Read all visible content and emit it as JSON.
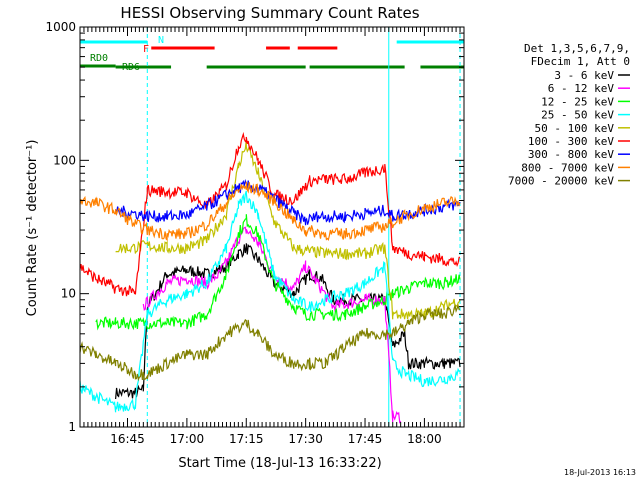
{
  "chart_data": {
    "type": "line",
    "title": "HESSI Observing Summary Count Rates",
    "xlabel": "Start Time (18-Jul-13 16:33:22)",
    "ylabel": "Count Rate (s⁻¹ detector⁻¹)",
    "y_scale": "log",
    "ylim": [
      1,
      1000
    ],
    "xlim": [
      "16:33",
      "18:10"
    ],
    "x_tick_labels": [
      "16:45",
      "17:00",
      "17:15",
      "17:30",
      "17:45",
      "18:00"
    ],
    "y_tick_labels": [
      "1",
      "10",
      "100",
      "1000"
    ],
    "legend_header": [
      "Det 1,3,5,6,7,9,",
      "FDecim 1, Att 0"
    ],
    "legend_position": "right",
    "footer_timestamp": "18-Jul-2013 16:13",
    "flags": [
      {
        "label": "N",
        "color": "#00ffff",
        "segments": [
          [
            "16:33",
            "16:50"
          ],
          [
            "17:53",
            "18:10"
          ]
        ]
      },
      {
        "label": "F",
        "color": "#ff0000",
        "segments": [
          [
            "16:51",
            "17:07"
          ],
          [
            "17:20",
            "17:26"
          ],
          [
            "17:28",
            "17:38"
          ]
        ]
      },
      {
        "label": "RD0",
        "color": "#008000",
        "segments": [
          [
            "16:33",
            "16:42"
          ]
        ]
      },
      {
        "label": "RD6",
        "color": "#008000",
        "segments": [
          [
            "16:42",
            "16:56"
          ],
          [
            "17:05",
            "17:30"
          ],
          [
            "17:31",
            "17:55"
          ],
          [
            "17:59",
            "18:10"
          ]
        ]
      }
    ],
    "boundaries": [
      {
        "time": "16:50",
        "color": "#00ffff",
        "style": "dashed"
      },
      {
        "time": "17:51",
        "color": "#00ffff",
        "style": "solid"
      },
      {
        "time": "18:09",
        "color": "#00ffff",
        "style": "dashed"
      }
    ],
    "series": [
      {
        "name": "3 - 6 keV",
        "color": "#000000",
        "points": [
          [
            "16:42",
            1.8
          ],
          [
            "16:47",
            1.8
          ],
          [
            "16:49",
            1.9
          ],
          [
            "16:50",
            8
          ],
          [
            "16:55",
            14
          ],
          [
            "17:00",
            15
          ],
          [
            "17:05",
            14
          ],
          [
            "17:08",
            15
          ],
          [
            "17:10",
            16
          ],
          [
            "17:13",
            20
          ],
          [
            "17:15",
            22
          ],
          [
            "17:18",
            18
          ],
          [
            "17:22",
            12
          ],
          [
            "17:27",
            10
          ],
          [
            "17:31",
            14
          ],
          [
            "17:34",
            13
          ],
          [
            "17:37",
            9
          ],
          [
            "17:45",
            9
          ],
          [
            "17:50",
            9
          ],
          [
            "17:52",
            4
          ],
          [
            "17:55",
            5
          ],
          [
            "17:56",
            3
          ],
          [
            "18:00",
            3
          ],
          [
            "18:05",
            3
          ],
          [
            "18:09",
            3
          ]
        ]
      },
      {
        "name": "6 - 12 keV",
        "color": "#ff00ff",
        "points": [
          [
            "16:49",
            8
          ],
          [
            "16:55",
            12
          ],
          [
            "17:00",
            13
          ],
          [
            "17:05",
            12
          ],
          [
            "17:08",
            14
          ],
          [
            "17:10",
            17
          ],
          [
            "17:13",
            26
          ],
          [
            "17:15",
            30
          ],
          [
            "17:18",
            24
          ],
          [
            "17:22",
            14
          ],
          [
            "17:27",
            11
          ],
          [
            "17:30",
            16
          ],
          [
            "17:33",
            12
          ],
          [
            "17:37",
            8
          ],
          [
            "17:45",
            9
          ],
          [
            "17:50",
            9
          ],
          [
            "17:52",
            1.2
          ],
          [
            "17:54",
            1.2
          ]
        ]
      },
      {
        "name": "12 - 25 keV",
        "color": "#00ff00",
        "points": [
          [
            "16:37",
            6
          ],
          [
            "16:42",
            6
          ],
          [
            "16:47",
            6
          ],
          [
            "16:50",
            6
          ],
          [
            "16:55",
            6
          ],
          [
            "17:00",
            6
          ],
          [
            "17:05",
            7
          ],
          [
            "17:10",
            14
          ],
          [
            "17:13",
            28
          ],
          [
            "17:15",
            36
          ],
          [
            "17:18",
            28
          ],
          [
            "17:22",
            12
          ],
          [
            "17:27",
            8
          ],
          [
            "17:30",
            7
          ],
          [
            "17:35",
            7
          ],
          [
            "17:40",
            7
          ],
          [
            "17:45",
            8
          ],
          [
            "17:50",
            9
          ],
          [
            "17:52",
            10
          ],
          [
            "17:56",
            11
          ],
          [
            "18:00",
            12
          ],
          [
            "18:05",
            12
          ],
          [
            "18:09",
            13
          ]
        ]
      },
      {
        "name": "25 - 50 keV",
        "color": "#00ffff",
        "points": [
          [
            "16:33",
            2
          ],
          [
            "16:37",
            1.7
          ],
          [
            "16:42",
            1.4
          ],
          [
            "16:47",
            1.5
          ],
          [
            "16:50",
            7
          ],
          [
            "16:55",
            9
          ],
          [
            "17:00",
            10
          ],
          [
            "17:05",
            12
          ],
          [
            "17:10",
            22
          ],
          [
            "17:13",
            45
          ],
          [
            "17:15",
            55
          ],
          [
            "17:18",
            40
          ],
          [
            "17:22",
            14
          ],
          [
            "17:27",
            9
          ],
          [
            "17:31",
            8
          ],
          [
            "17:35",
            9
          ],
          [
            "17:40",
            10
          ],
          [
            "17:45",
            12
          ],
          [
            "17:50",
            16
          ],
          [
            "17:52",
            3
          ],
          [
            "17:55",
            2.5
          ],
          [
            "18:00",
            2.2
          ],
          [
            "18:05",
            2.3
          ],
          [
            "18:09",
            2.5
          ]
        ]
      },
      {
        "name": "50 - 100 keV",
        "color": "#c0c000",
        "points": [
          [
            "16:42",
            22
          ],
          [
            "16:47",
            22
          ],
          [
            "16:50",
            23
          ],
          [
            "16:55",
            22
          ],
          [
            "17:00",
            22
          ],
          [
            "17:05",
            25
          ],
          [
            "17:10",
            40
          ],
          [
            "17:13",
            90
          ],
          [
            "17:15",
            130
          ],
          [
            "17:18",
            80
          ],
          [
            "17:22",
            35
          ],
          [
            "17:27",
            22
          ],
          [
            "17:30",
            21
          ],
          [
            "17:35",
            20
          ],
          [
            "17:40",
            20
          ],
          [
            "17:45",
            20
          ],
          [
            "17:50",
            22
          ],
          [
            "17:52",
            7
          ],
          [
            "18:00",
            7
          ],
          [
            "18:05",
            8
          ],
          [
            "18:09",
            9
          ]
        ]
      },
      {
        "name": "100 - 300 keV",
        "color": "#ff0000",
        "points": [
          [
            "16:33",
            16
          ],
          [
            "16:37",
            13
          ],
          [
            "16:42",
            11
          ],
          [
            "16:47",
            10
          ],
          [
            "16:50",
            60
          ],
          [
            "16:55",
            58
          ],
          [
            "17:00",
            57
          ],
          [
            "17:05",
            45
          ],
          [
            "17:10",
            65
          ],
          [
            "17:13",
            130
          ],
          [
            "17:15",
            150
          ],
          [
            "17:18",
            100
          ],
          [
            "17:22",
            55
          ],
          [
            "17:27",
            50
          ],
          [
            "17:31",
            70
          ],
          [
            "17:35",
            72
          ],
          [
            "17:40",
            72
          ],
          [
            "17:45",
            80
          ],
          [
            "17:50",
            88
          ],
          [
            "17:52",
            22
          ],
          [
            "17:56",
            20
          ],
          [
            "18:00",
            19
          ],
          [
            "18:05",
            18
          ],
          [
            "18:09",
            17
          ]
        ]
      },
      {
        "name": "300 - 800 keV",
        "color": "#0000ff",
        "points": [
          [
            "16:42",
            42
          ],
          [
            "16:47",
            40
          ],
          [
            "16:50",
            38
          ],
          [
            "16:55",
            38
          ],
          [
            "17:00",
            39
          ],
          [
            "17:05",
            45
          ],
          [
            "17:10",
            55
          ],
          [
            "17:13",
            62
          ],
          [
            "17:15",
            64
          ],
          [
            "17:18",
            62
          ],
          [
            "17:22",
            52
          ],
          [
            "17:27",
            40
          ],
          [
            "17:30",
            35
          ],
          [
            "17:33",
            38
          ],
          [
            "17:37",
            38
          ],
          [
            "17:40",
            38
          ],
          [
            "17:45",
            40
          ],
          [
            "17:50",
            42
          ],
          [
            "17:52",
            38
          ],
          [
            "17:56",
            40
          ],
          [
            "18:00",
            42
          ],
          [
            "18:05",
            45
          ],
          [
            "18:09",
            47
          ]
        ]
      },
      {
        "name": "800 - 7000 keV",
        "color": "#ff8000",
        "points": [
          [
            "16:33",
            50
          ],
          [
            "16:37",
            48
          ],
          [
            "16:42",
            42
          ],
          [
            "16:47",
            33
          ],
          [
            "16:50",
            30
          ],
          [
            "16:55",
            28
          ],
          [
            "17:00",
            28
          ],
          [
            "17:05",
            33
          ],
          [
            "17:10",
            48
          ],
          [
            "17:13",
            60
          ],
          [
            "17:15",
            63
          ],
          [
            "17:18",
            60
          ],
          [
            "17:22",
            50
          ],
          [
            "17:27",
            35
          ],
          [
            "17:30",
            30
          ],
          [
            "17:35",
            28
          ],
          [
            "17:40",
            28
          ],
          [
            "17:45",
            30
          ],
          [
            "17:50",
            32
          ],
          [
            "17:55",
            38
          ],
          [
            "18:00",
            44
          ],
          [
            "18:05",
            48
          ],
          [
            "18:09",
            50
          ]
        ]
      },
      {
        "name": "7000 - 20000 keV",
        "color": "#808000",
        "points": [
          [
            "16:33",
            4
          ],
          [
            "16:37",
            3.5
          ],
          [
            "16:42",
            3
          ],
          [
            "16:47",
            2.5
          ],
          [
            "16:50",
            2.5
          ],
          [
            "16:55",
            3
          ],
          [
            "17:00",
            3.5
          ],
          [
            "17:05",
            3.5
          ],
          [
            "17:10",
            5
          ],
          [
            "17:15",
            6
          ],
          [
            "17:18",
            5
          ],
          [
            "17:22",
            3.5
          ],
          [
            "17:27",
            3
          ],
          [
            "17:31",
            3
          ],
          [
            "17:35",
            3
          ],
          [
            "17:40",
            4
          ],
          [
            "17:45",
            5
          ],
          [
            "17:50",
            5
          ],
          [
            "17:52",
            5
          ],
          [
            "17:56",
            6
          ],
          [
            "18:00",
            7
          ],
          [
            "18:05",
            7
          ],
          [
            "18:09",
            8
          ]
        ]
      }
    ]
  }
}
